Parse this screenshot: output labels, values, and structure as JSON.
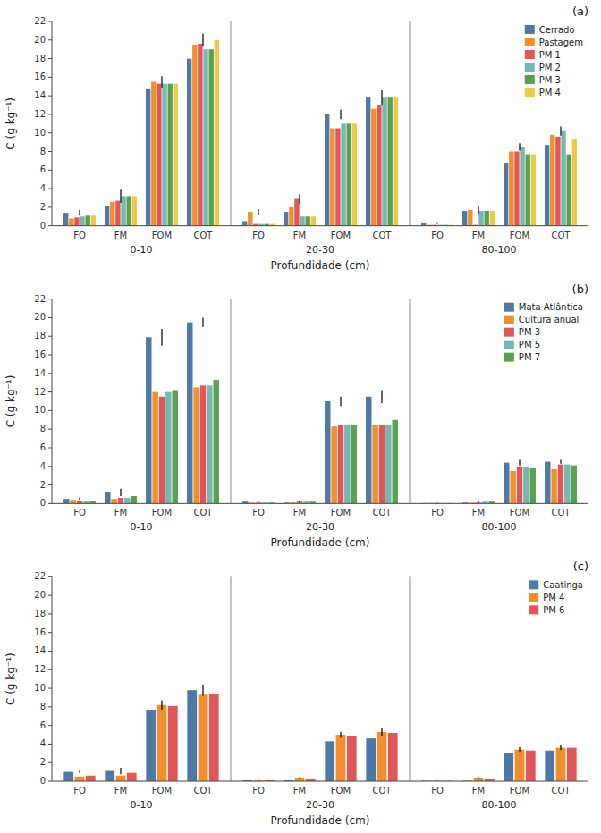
{
  "chart_data": [
    {
      "type": "bar",
      "title": "(a)",
      "x_label": "Profundidade (cm)",
      "y_label": "C (g kg⁻¹)",
      "groups": [
        "0-10",
        "20-30",
        "80-100"
      ],
      "categories": [
        "FO",
        "FM",
        "FOM",
        "COT",
        "FO",
        "FM",
        "FOM",
        "COT",
        "FO",
        "FM",
        "FOM",
        "COT"
      ],
      "series": [
        {
          "name": "Cerrado",
          "values": [
            1.4,
            2.1,
            14.7,
            18.0,
            0.5,
            1.5,
            12.0,
            13.8,
            0.3,
            1.6,
            6.8,
            8.7
          ]
        },
        {
          "name": "Pastagem",
          "values": [
            0.8,
            2.6,
            15.5,
            19.5,
            1.5,
            2.0,
            10.5,
            12.6,
            0.1,
            1.7,
            8.0,
            9.8
          ]
        },
        {
          "name": "PM 1",
          "values": [
            0.9,
            2.7,
            15.3,
            19.6,
            0.2,
            2.9,
            10.5,
            13.0,
            0.1,
            0.1,
            8.0,
            9.6
          ]
        },
        {
          "name": "PM 2",
          "values": [
            1.0,
            3.2,
            15.3,
            19.0,
            0.2,
            1.0,
            11.0,
            13.8,
            0.1,
            1.6,
            8.5,
            10.2
          ]
        },
        {
          "name": "PM 3",
          "values": [
            1.1,
            3.2,
            15.3,
            19.0,
            0.2,
            1.0,
            11.0,
            13.8,
            0.1,
            1.6,
            7.7,
            7.7
          ]
        },
        {
          "name": "PM 4",
          "values": [
            1.1,
            3.2,
            15.3,
            20.0,
            0.2,
            1.0,
            11.0,
            13.8,
            0.1,
            1.6,
            7.7,
            9.3
          ]
        }
      ],
      "error_bars": {
        "values": [
          1.4,
          3.2,
          15.5,
          20.0,
          1.5,
          2.9,
          12.0,
          13.8,
          0.3,
          1.7,
          8.5,
          10.2
        ],
        "errors": [
          0.3,
          0.7,
          0.6,
          0.7,
          0.3,
          0.5,
          0.5,
          0.8,
          0.1,
          0.4,
          0.4,
          0.5
        ]
      },
      "ylim": [
        0,
        22
      ],
      "yticks": [
        0,
        2,
        4,
        6,
        8,
        10,
        12,
        14,
        16,
        18,
        20,
        22
      ],
      "grid": false,
      "legend": "upper right"
    },
    {
      "type": "bar",
      "title": "(b)",
      "x_label": "Profundidade (cm)",
      "y_label": "C (g kg⁻¹)",
      "groups": [
        "0-10",
        "20-30",
        "80-100"
      ],
      "categories": [
        "FO",
        "FM",
        "FOM",
        "COT",
        "FO",
        "FM",
        "FOM",
        "COT",
        "FO",
        "FM",
        "FOM",
        "COT"
      ],
      "series": [
        {
          "name": "Mata Atlântica",
          "values": [
            0.5,
            1.2,
            17.9,
            19.5,
            0.2,
            0.1,
            11.0,
            11.5,
            0.05,
            0.1,
            4.4,
            4.5
          ]
        },
        {
          "name": "Cultura anual",
          "values": [
            0.4,
            0.5,
            12.0,
            12.5,
            0.1,
            0.1,
            8.3,
            8.5,
            0.05,
            0.1,
            3.5,
            3.7
          ]
        },
        {
          "name": "PM 3",
          "values": [
            0.3,
            0.6,
            11.5,
            12.7,
            0.1,
            0.2,
            8.5,
            8.5,
            0.05,
            0.1,
            4.0,
            4.2
          ]
        },
        {
          "name": "PM 5",
          "values": [
            0.3,
            0.6,
            12.0,
            12.7,
            0.1,
            0.2,
            8.5,
            8.5,
            0.05,
            0.2,
            3.9,
            4.2
          ]
        },
        {
          "name": "PM 7",
          "values": [
            0.3,
            0.8,
            12.2,
            13.3,
            0.1,
            0.2,
            8.5,
            9.0,
            0.05,
            0.2,
            3.8,
            4.1
          ]
        }
      ],
      "error_bars": {
        "values": [
          0.5,
          1.2,
          17.9,
          19.5,
          0.2,
          0.2,
          11.0,
          11.5,
          0.05,
          0.2,
          4.4,
          4.5
        ],
        "errors": [
          0.1,
          0.4,
          0.9,
          0.5,
          0.05,
          0.1,
          0.5,
          0.7,
          0.02,
          0.1,
          0.3,
          0.2
        ]
      },
      "ylim": [
        0,
        22
      ],
      "yticks": [
        0,
        2,
        4,
        6,
        8,
        10,
        12,
        14,
        16,
        18,
        20,
        22
      ],
      "grid": false,
      "legend": "upper right"
    },
    {
      "type": "bar",
      "title": "(c)",
      "x_label": "Profundidade (cm)",
      "y_label": "C (g kg⁻¹)",
      "groups": [
        "0-10",
        "20-30",
        "80-100"
      ],
      "categories": [
        "FO",
        "FM",
        "FOM",
        "COT",
        "FO",
        "FM",
        "FOM",
        "COT",
        "FO",
        "FM",
        "FOM",
        "COT"
      ],
      "series": [
        {
          "name": "Caatinga",
          "values": [
            1.0,
            1.1,
            7.7,
            9.8,
            0.1,
            0.1,
            4.3,
            4.6,
            0.05,
            0.05,
            3.0,
            3.3
          ]
        },
        {
          "name": "PM 4",
          "values": [
            0.5,
            0.6,
            8.2,
            9.3,
            0.1,
            0.3,
            5.0,
            5.3,
            0.05,
            0.3,
            3.4,
            3.6
          ]
        },
        {
          "name": "PM 6",
          "values": [
            0.6,
            0.9,
            8.1,
            9.4,
            0.1,
            0.2,
            4.9,
            5.2,
            0.05,
            0.2,
            3.3,
            3.6
          ]
        }
      ],
      "error_bars": {
        "values": [
          1.0,
          1.1,
          8.2,
          9.8,
          0.1,
          0.3,
          5.0,
          5.3,
          0.05,
          0.3,
          3.4,
          3.6
        ],
        "errors": [
          0.12,
          0.35,
          0.5,
          0.6,
          0.02,
          0.1,
          0.3,
          0.4,
          0.02,
          0.1,
          0.25,
          0.25
        ]
      },
      "ylim": [
        0,
        22
      ],
      "yticks": [
        0,
        2,
        4,
        6,
        8,
        10,
        12,
        14,
        16,
        18,
        20,
        22
      ],
      "grid": false,
      "legend": "upper right"
    }
  ]
}
